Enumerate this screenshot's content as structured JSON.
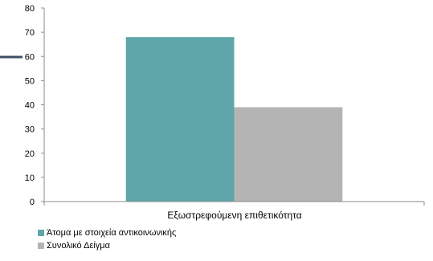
{
  "chart_data": {
    "type": "bar",
    "categories": [
      "Εξωστρεφούμενη επιθετικότητα"
    ],
    "series": [
      {
        "name": "Άτομα με στοιχεία αντικοινωνικής",
        "values": [
          68
        ],
        "color": "#5fa6aa"
      },
      {
        "name": "Συνολικό Δείγμα",
        "values": [
          39
        ],
        "color": "#b4b4b4"
      }
    ],
    "yticks": [
      "0",
      "10",
      "20",
      "30",
      "40",
      "50",
      "60",
      "70",
      "80"
    ],
    "ylim": [
      0,
      80
    ],
    "grid": false,
    "legend_position": "bottom-left"
  },
  "colors": {
    "axis": "#8c8c8c",
    "legend_marker_left": "#3c4f63"
  }
}
